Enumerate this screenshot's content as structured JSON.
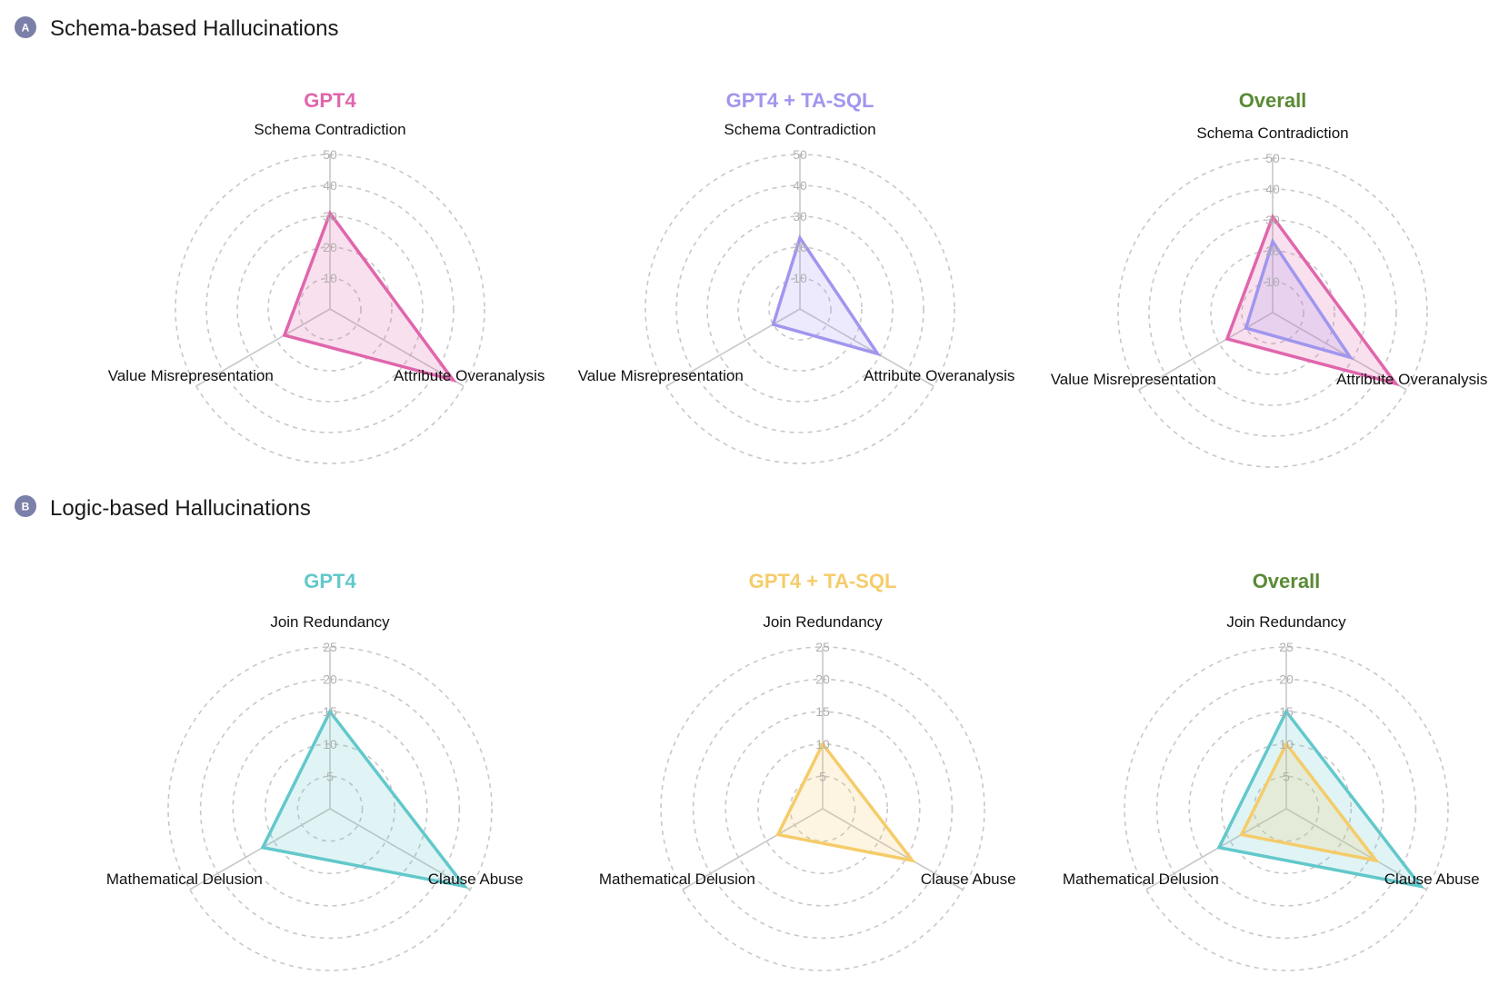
{
  "sections": [
    {
      "badge": "A",
      "title": "Schema-based Hallucinations"
    },
    {
      "badge": "B",
      "title": "Logic-based Hallucinations"
    }
  ],
  "colors": {
    "badge": "#7b80a8",
    "gpt4_schema": "#e066ac",
    "tasql_schema": "#a096ee",
    "gpt4_logic": "#62c8cb",
    "tasql_logic": "#f5cc6a",
    "overall": "#5a8a35"
  },
  "chart_data": [
    {
      "type": "radar",
      "section": 0,
      "title": "GPT4",
      "title_color_key": "gpt4_schema",
      "axes": [
        "Schema Contradiction",
        "Attribute Overanalysis",
        "Value Misrepresentation"
      ],
      "range": [
        0,
        50
      ],
      "ticks": [
        "10",
        "20",
        "30",
        "40",
        "50"
      ],
      "series": [
        {
          "name": "GPT4",
          "values": [
            31,
            46,
            17
          ],
          "color_key": "gpt4_schema"
        }
      ]
    },
    {
      "type": "radar",
      "section": 0,
      "title": "GPT4 + TA-SQL",
      "title_color_key": "tasql_schema",
      "axes": [
        "Schema Contradiction",
        "Attribute Overanalysis",
        "Value Misrepresentation"
      ],
      "range": [
        0,
        50
      ],
      "ticks": [
        "10",
        "20",
        "30",
        "40",
        "50"
      ],
      "series": [
        {
          "name": "GPT4 + TA-SQL",
          "values": [
            23,
            29,
            10
          ],
          "color_key": "tasql_schema"
        }
      ]
    },
    {
      "type": "radar",
      "section": 0,
      "title": "Overall",
      "title_color_key": "overall",
      "axes": [
        "Schema Contradiction",
        "Attribute Overanalysis",
        "Value Misrepresentation"
      ],
      "range": [
        0,
        50
      ],
      "ticks": [
        "10",
        "20",
        "30",
        "40",
        "50"
      ],
      "series": [
        {
          "name": "GPT4",
          "values": [
            31,
            46,
            17
          ],
          "color_key": "gpt4_schema"
        },
        {
          "name": "GPT4 + TA-SQL",
          "values": [
            23,
            29,
            10
          ],
          "color_key": "tasql_schema"
        }
      ]
    },
    {
      "type": "radar",
      "section": 1,
      "title": "GPT4",
      "title_color_key": "gpt4_logic",
      "axes": [
        "Join Redundancy",
        "Clause Abuse",
        "Mathematical Delusion"
      ],
      "range": [
        0,
        25
      ],
      "ticks": [
        "5",
        "10",
        "15",
        "20",
        "25"
      ],
      "series": [
        {
          "name": "GPT4",
          "values": [
            15,
            24,
            12
          ],
          "color_key": "gpt4_logic"
        }
      ]
    },
    {
      "type": "radar",
      "section": 1,
      "title": "GPT4 + TA-SQL",
      "title_color_key": "tasql_logic",
      "axes": [
        "Join Redundancy",
        "Clause Abuse",
        "Mathematical Delusion"
      ],
      "range": [
        0,
        25
      ],
      "ticks": [
        "5",
        "10",
        "15",
        "20",
        "25"
      ],
      "series": [
        {
          "name": "GPT4 + TA-SQL",
          "values": [
            10,
            16,
            8
          ],
          "color_key": "tasql_logic"
        }
      ]
    },
    {
      "type": "radar",
      "section": 1,
      "title": "Overall",
      "title_color_key": "overall",
      "axes": [
        "Join Redundancy",
        "Clause Abuse",
        "Mathematical Delusion"
      ],
      "range": [
        0,
        25
      ],
      "ticks": [
        "5",
        "10",
        "15",
        "20",
        "25"
      ],
      "series": [
        {
          "name": "GPT4",
          "values": [
            15,
            24,
            12
          ],
          "color_key": "gpt4_logic"
        },
        {
          "name": "GPT4 + TA-SQL",
          "values": [
            10,
            16,
            8
          ],
          "color_key": "tasql_logic"
        }
      ]
    }
  ]
}
